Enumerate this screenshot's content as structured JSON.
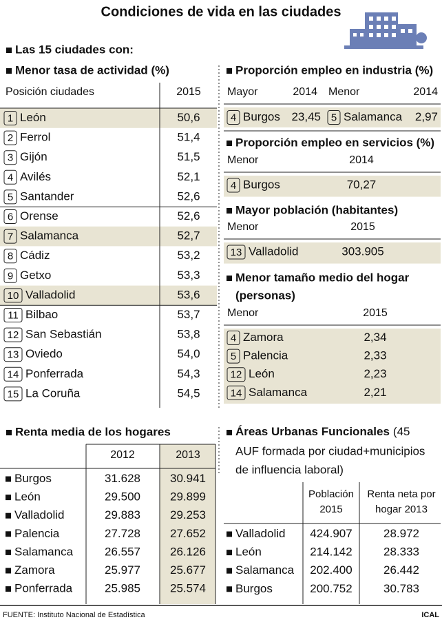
{
  "title": "Condiciones de vida en las ciudades",
  "subtitle": "Las 15 ciudades con:",
  "actividad": {
    "title": "Menor tasa de actividad (%)",
    "headers": [
      "Posición ciudades",
      "2015"
    ],
    "rows": [
      {
        "rank": "1",
        "city": "León",
        "value": "50,6"
      },
      {
        "rank": "2",
        "city": "Ferrol",
        "value": "51,4"
      },
      {
        "rank": "3",
        "city": "Gijón",
        "value": "51,5"
      },
      {
        "rank": "4",
        "city": "Avilés",
        "value": "52,1"
      },
      {
        "rank": "5",
        "city": "Santander",
        "value": "52,6"
      },
      {
        "rank": "6",
        "city": "Orense",
        "value": "52,6"
      },
      {
        "rank": "7",
        "city": "Salamanca",
        "value": "52,7"
      },
      {
        "rank": "8",
        "city": "Cádiz",
        "value": "53,2"
      },
      {
        "rank": "9",
        "city": "Getxo",
        "value": "53,3"
      },
      {
        "rank": "10",
        "city": "Valladolid",
        "value": "53,6"
      },
      {
        "rank": "11",
        "city": "Bilbao",
        "value": "53,7"
      },
      {
        "rank": "12",
        "city": "San Sebastián",
        "value": "53,8"
      },
      {
        "rank": "13",
        "city": "Oviedo",
        "value": "54,0"
      },
      {
        "rank": "14",
        "city": "Ponferrada",
        "value": "54,3"
      },
      {
        "rank": "15",
        "city": "La Coruña",
        "value": "54,5"
      }
    ]
  },
  "industria": {
    "title": "Proporción empleo en industria (%)",
    "headers": [
      "Mayor",
      "2014",
      "Menor",
      "2014"
    ],
    "mayor": {
      "rank": "4",
      "city": "Burgos",
      "value": "23,45"
    },
    "menor": {
      "rank": "5",
      "city": "Salamanca",
      "value": "2,97"
    }
  },
  "servicios": {
    "title": "Proporción empleo en servicios (%)",
    "headers": [
      "Menor",
      "2014"
    ],
    "rows": [
      {
        "rank": "4",
        "city": "Burgos",
        "value": "70,27"
      }
    ]
  },
  "poblacion": {
    "title": "Mayor población (habitantes)",
    "headers": [
      "Menor",
      "2015"
    ],
    "rows": [
      {
        "rank": "13",
        "city": "Valladolid",
        "value": "303.905"
      }
    ]
  },
  "hogar": {
    "title": [
      "Menor tamaño medio del hogar",
      "(personas)"
    ],
    "headers": [
      "Menor",
      "2015"
    ],
    "rows": [
      {
        "rank": "4",
        "city": "Zamora",
        "value": "2,34"
      },
      {
        "rank": "5",
        "city": "Palencia",
        "value": "2,33"
      },
      {
        "rank": "12",
        "city": "León",
        "value": "2,23"
      },
      {
        "rank": "14",
        "city": "Salamanca",
        "value": "2,21"
      }
    ]
  },
  "renta": {
    "title": "Renta media de los hogares",
    "headers": [
      "2012",
      "2013"
    ],
    "rows": [
      [
        "Burgos",
        "31.628",
        "30.941"
      ],
      [
        "León",
        "29.500",
        "29.899"
      ],
      [
        "Valladolid",
        "29.883",
        "29.253"
      ],
      [
        "Palencia",
        "27.728",
        "27.652"
      ],
      [
        "Salamanca",
        "26.557",
        "26.126"
      ],
      [
        "Zamora",
        "25.977",
        "25.677"
      ],
      [
        "Ponferrada",
        "25.985",
        "25.574"
      ]
    ]
  },
  "auf": {
    "title_bold": "Áreas Urbanas Funcionales",
    "title_rest": [
      "(45",
      "AUF formada por ciudad+municipios",
      "de influencia laboral)"
    ],
    "headers": [
      [
        "Población",
        "2015"
      ],
      [
        "Renta neta por",
        "hogar 2013"
      ]
    ],
    "rows": [
      [
        "Valladolid",
        "424.907",
        "28.972"
      ],
      [
        "León",
        "214.142",
        "28.333"
      ],
      [
        "Salamanca",
        "202.400",
        "26.442"
      ],
      [
        "Burgos",
        "200.752",
        "30.783"
      ]
    ]
  },
  "footer": {
    "source": "FUENTE: Instituto Nacional de Estadística",
    "credit": "ICAL"
  }
}
